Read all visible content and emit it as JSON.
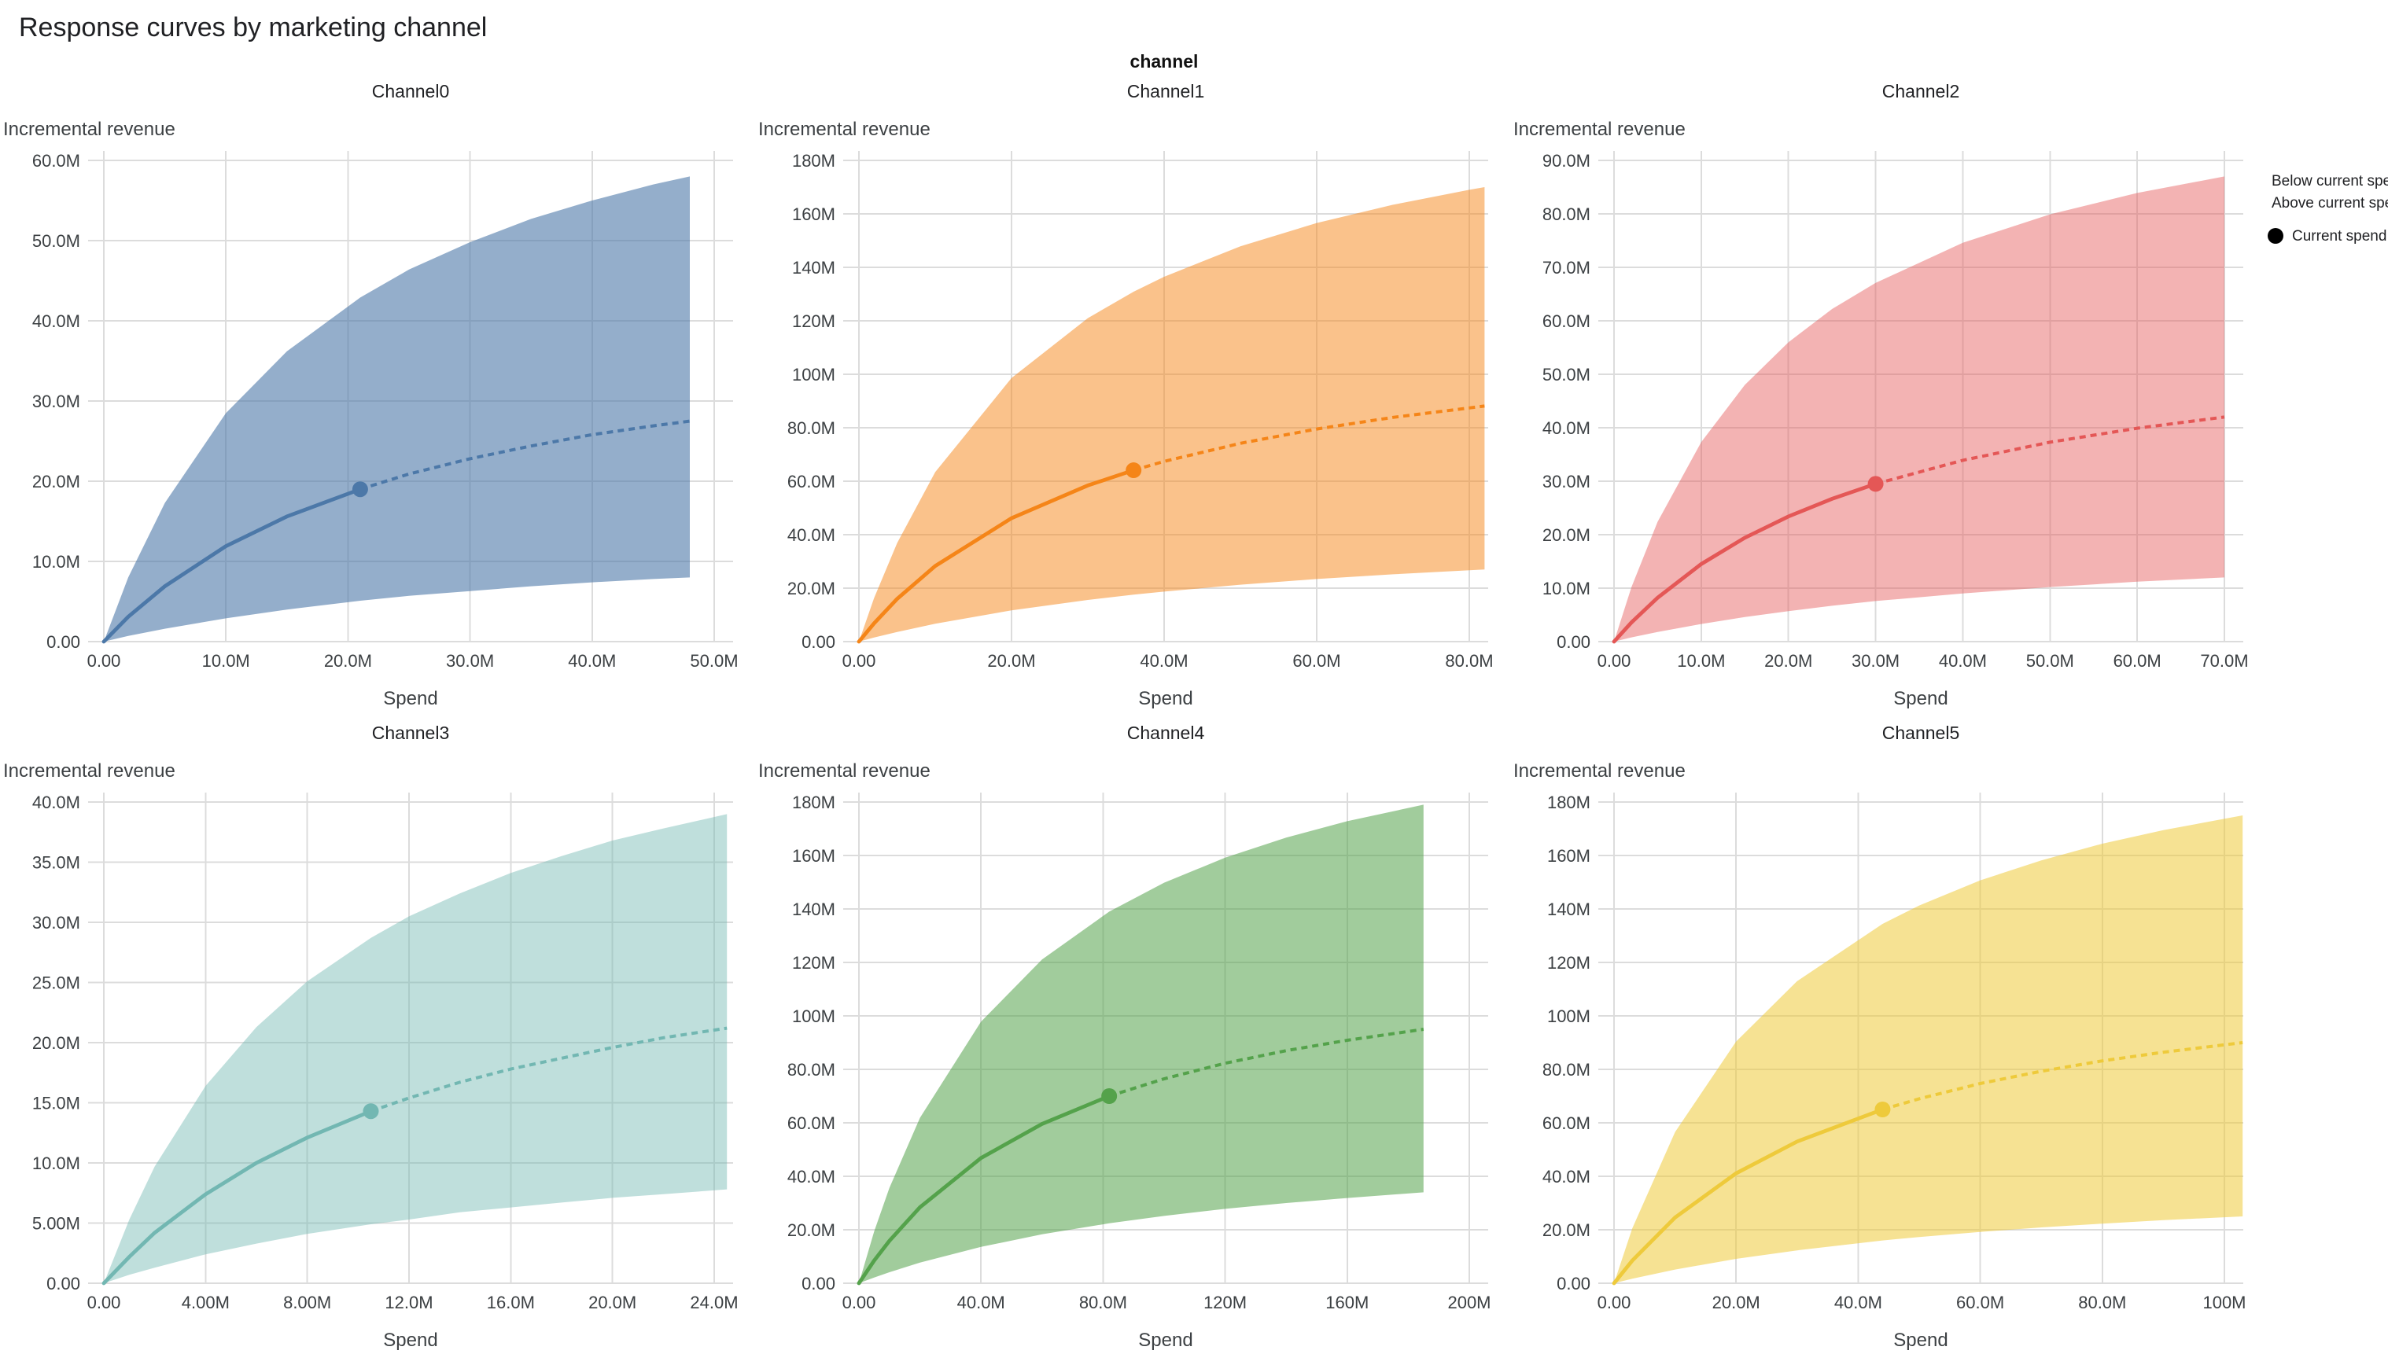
{
  "page_title": "Response curves by marketing channel",
  "figure_title": "channel",
  "legend": {
    "below_label": "Below current spend",
    "above_label": "Above current spend",
    "current_label": "Current spend"
  },
  "axis": {
    "x_label": "Spend",
    "y_label": "Incremental revenue"
  },
  "chart_data": [
    {
      "type": "area",
      "title": "Channel0",
      "xlabel": "Spend",
      "ylabel": "Incremental revenue",
      "color": "#4c78a8",
      "band_opacity": 0.6,
      "unit": "M",
      "xlim": [
        0,
        50
      ],
      "ylim": [
        0,
        60
      ],
      "x_ticks": [
        {
          "v": 0,
          "label": "0.00"
        },
        {
          "v": 10,
          "label": "10.0M"
        },
        {
          "v": 20,
          "label": "20.0M"
        },
        {
          "v": 30,
          "label": "30.0M"
        },
        {
          "v": 40,
          "label": "40.0M"
        },
        {
          "v": 50,
          "label": "50.0M"
        }
      ],
      "y_ticks": [
        {
          "v": 0,
          "label": "0.00"
        },
        {
          "v": 10,
          "label": "10.0M"
        },
        {
          "v": 20,
          "label": "20.0M"
        },
        {
          "v": 30,
          "label": "30.0M"
        },
        {
          "v": 40,
          "label": "40.0M"
        },
        {
          "v": 50,
          "label": "50.0M"
        },
        {
          "v": 60,
          "label": "60.0M"
        }
      ],
      "current_spend": {
        "x": 21,
        "y": 19.0
      },
      "x": [
        0,
        2,
        5,
        10,
        15,
        21,
        25,
        30,
        35,
        40,
        45,
        48
      ],
      "mean": [
        0,
        3.1,
        6.9,
        11.9,
        15.6,
        19.0,
        20.9,
        22.8,
        24.4,
        25.8,
        26.9,
        27.5
      ],
      "upper": [
        0,
        8.0,
        17.3,
        28.5,
        36.2,
        42.9,
        46.4,
        49.8,
        52.7,
        55.0,
        57.0,
        58.0
      ],
      "lower": [
        0,
        0.7,
        1.6,
        2.9,
        4.0,
        5.1,
        5.7,
        6.3,
        6.9,
        7.4,
        7.8,
        8.0
      ]
    },
    {
      "type": "area",
      "title": "Channel1",
      "xlabel": "Spend",
      "ylabel": "Incremental revenue",
      "color": "#f58518",
      "band_opacity": 0.5,
      "unit": "M",
      "xlim": [
        0,
        80
      ],
      "ylim": [
        0,
        180
      ],
      "x_ticks": [
        {
          "v": 0,
          "label": "0.00"
        },
        {
          "v": 20,
          "label": "20.0M"
        },
        {
          "v": 40,
          "label": "40.0M"
        },
        {
          "v": 60,
          "label": "60.0M"
        },
        {
          "v": 80,
          "label": "80.0M"
        }
      ],
      "y_ticks": [
        {
          "v": 0,
          "label": "0.00"
        },
        {
          "v": 20,
          "label": "20.0M"
        },
        {
          "v": 40,
          "label": "40.0M"
        },
        {
          "v": 60,
          "label": "60.0M"
        },
        {
          "v": 80,
          "label": "80.0M"
        },
        {
          "v": 100,
          "label": "100M"
        },
        {
          "v": 120,
          "label": "120M"
        },
        {
          "v": 140,
          "label": "140M"
        },
        {
          "v": 160,
          "label": "160M"
        },
        {
          "v": 180,
          "label": "180M"
        }
      ],
      "current_spend": {
        "x": 36,
        "y": 64.1
      },
      "x": [
        0,
        2,
        5,
        10,
        20,
        30,
        36,
        40,
        50,
        60,
        70,
        80,
        82
      ],
      "mean": [
        0,
        6.9,
        16.0,
        28.3,
        46.2,
        58.4,
        64.1,
        67.4,
        74.2,
        79.5,
        83.9,
        87.4,
        88.1
      ],
      "upper": [
        0,
        16.4,
        36.9,
        63.4,
        98.6,
        121.0,
        130.9,
        136.5,
        147.9,
        156.6,
        163.4,
        169.0,
        170.0
      ],
      "lower": [
        0,
        1.5,
        3.6,
        6.7,
        11.7,
        15.6,
        17.6,
        18.7,
        21.3,
        23.4,
        25.2,
        26.7,
        27.0
      ]
    },
    {
      "type": "area",
      "title": "Channel2",
      "xlabel": "Spend",
      "ylabel": "Incremental revenue",
      "color": "#e45756",
      "band_opacity": 0.45,
      "unit": "M",
      "xlim": [
        0,
        70
      ],
      "ylim": [
        0,
        90
      ],
      "x_ticks": [
        {
          "v": 0,
          "label": "0.00"
        },
        {
          "v": 10,
          "label": "10.0M"
        },
        {
          "v": 20,
          "label": "20.0M"
        },
        {
          "v": 30,
          "label": "30.0M"
        },
        {
          "v": 40,
          "label": "40.0M"
        },
        {
          "v": 50,
          "label": "50.0M"
        },
        {
          "v": 60,
          "label": "60.0M"
        },
        {
          "v": 70,
          "label": "70.0M"
        }
      ],
      "y_ticks": [
        {
          "v": 0,
          "label": "0.00"
        },
        {
          "v": 10,
          "label": "10.0M"
        },
        {
          "v": 20,
          "label": "20.0M"
        },
        {
          "v": 30,
          "label": "30.0M"
        },
        {
          "v": 40,
          "label": "40.0M"
        },
        {
          "v": 50,
          "label": "50.0M"
        },
        {
          "v": 60,
          "label": "60.0M"
        },
        {
          "v": 70,
          "label": "70.0M"
        },
        {
          "v": 80,
          "label": "80.0M"
        },
        {
          "v": 90,
          "label": "90.0M"
        }
      ],
      "current_spend": {
        "x": 30,
        "y": 29.5
      },
      "x": [
        0,
        2,
        5,
        10,
        15,
        20,
        25,
        30,
        40,
        50,
        60,
        70
      ],
      "mean": [
        0,
        3.6,
        8.2,
        14.5,
        19.4,
        23.4,
        26.7,
        29.5,
        33.9,
        37.3,
        39.9,
        42.0
      ],
      "upper": [
        0,
        10.2,
        22.4,
        37.3,
        48.0,
        56.0,
        62.2,
        67.1,
        74.6,
        79.9,
        83.9,
        87.0
      ],
      "lower": [
        0,
        0.8,
        1.8,
        3.3,
        4.6,
        5.7,
        6.7,
        7.6,
        9.0,
        10.2,
        11.2,
        12.0
      ]
    },
    {
      "type": "area",
      "title": "Channel3",
      "xlabel": "Spend",
      "ylabel": "Incremental revenue",
      "color": "#72b7b2",
      "band_opacity": 0.45,
      "unit": "M",
      "xlim": [
        0,
        24
      ],
      "ylim": [
        0,
        40
      ],
      "x_ticks": [
        {
          "v": 0,
          "label": "0.00"
        },
        {
          "v": 4,
          "label": "4.00M"
        },
        {
          "v": 8,
          "label": "8.00M"
        },
        {
          "v": 12,
          "label": "12.0M"
        },
        {
          "v": 16,
          "label": "16.0M"
        },
        {
          "v": 20,
          "label": "20.0M"
        },
        {
          "v": 24,
          "label": "24.0M"
        }
      ],
      "y_ticks": [
        {
          "v": 0,
          "label": "0.00"
        },
        {
          "v": 5,
          "label": "5.00M"
        },
        {
          "v": 10,
          "label": "10.0M"
        },
        {
          "v": 15,
          "label": "15.0M"
        },
        {
          "v": 20,
          "label": "20.0M"
        },
        {
          "v": 25,
          "label": "25.0M"
        },
        {
          "v": 30,
          "label": "30.0M"
        },
        {
          "v": 35,
          "label": "35.0M"
        },
        {
          "v": 40,
          "label": "40.0M"
        }
      ],
      "current_spend": {
        "x": 10.5,
        "y": 14.3
      },
      "x": [
        0,
        1,
        2,
        4,
        6,
        8,
        10.5,
        12,
        14,
        16,
        18,
        20,
        22,
        24.5
      ],
      "mean": [
        0,
        2.2,
        4.2,
        7.4,
        10.0,
        12.1,
        14.3,
        15.4,
        16.7,
        17.8,
        18.7,
        19.6,
        20.4,
        21.2
      ],
      "upper": [
        0,
        5.3,
        9.7,
        16.4,
        21.3,
        25.1,
        28.7,
        30.5,
        32.4,
        34.1,
        35.5,
        36.8,
        37.8,
        39.0
      ],
      "lower": [
        0,
        0.7,
        1.3,
        2.4,
        3.3,
        4.1,
        4.9,
        5.3,
        5.9,
        6.3,
        6.7,
        7.1,
        7.4,
        7.8
      ]
    },
    {
      "type": "area",
      "title": "Channel4",
      "xlabel": "Spend",
      "ylabel": "Incremental revenue",
      "color": "#54a24b",
      "band_opacity": 0.55,
      "unit": "M",
      "xlim": [
        0,
        200
      ],
      "ylim": [
        0,
        180
      ],
      "x_ticks": [
        {
          "v": 0,
          "label": "0.00"
        },
        {
          "v": 40,
          "label": "40.0M"
        },
        {
          "v": 80,
          "label": "80.0M"
        },
        {
          "v": 120,
          "label": "120M"
        },
        {
          "v": 160,
          "label": "160M"
        },
        {
          "v": 200,
          "label": "200M"
        }
      ],
      "y_ticks": [
        {
          "v": 0,
          "label": "0.00"
        },
        {
          "v": 20,
          "label": "20.0M"
        },
        {
          "v": 40,
          "label": "40.0M"
        },
        {
          "v": 60,
          "label": "60.0M"
        },
        {
          "v": 80,
          "label": "80.0M"
        },
        {
          "v": 100,
          "label": "100M"
        },
        {
          "v": 120,
          "label": "120M"
        },
        {
          "v": 140,
          "label": "140M"
        },
        {
          "v": 160,
          "label": "160M"
        },
        {
          "v": 180,
          "label": "180M"
        }
      ],
      "current_spend": {
        "x": 82,
        "y": 70.0
      },
      "x": [
        0,
        5,
        10,
        20,
        40,
        60,
        82,
        100,
        120,
        140,
        160,
        185
      ],
      "mean": [
        0,
        8.5,
        15.9,
        28.4,
        46.8,
        59.6,
        70.0,
        76.5,
        82.3,
        87.0,
        90.9,
        95.0
      ],
      "upper": [
        0,
        19.4,
        35.7,
        61.9,
        97.8,
        121.1,
        139.0,
        149.8,
        159.2,
        166.7,
        172.8,
        179.0
      ],
      "lower": [
        0,
        2.1,
        4.1,
        7.7,
        13.6,
        18.3,
        22.4,
        25.2,
        27.8,
        30.0,
        31.9,
        34.0
      ]
    },
    {
      "type": "area",
      "title": "Channel5",
      "xlabel": "Spend",
      "ylabel": "Incremental revenue",
      "color": "#eeca3b",
      "band_opacity": 0.55,
      "unit": "M",
      "xlim": [
        0,
        100
      ],
      "ylim": [
        0,
        180
      ],
      "x_ticks": [
        {
          "v": 0,
          "label": "0.00"
        },
        {
          "v": 20,
          "label": "20.0M"
        },
        {
          "v": 40,
          "label": "40.0M"
        },
        {
          "v": 60,
          "label": "60.0M"
        },
        {
          "v": 80,
          "label": "80.0M"
        },
        {
          "v": 100,
          "label": "100M"
        }
      ],
      "y_ticks": [
        {
          "v": 0,
          "label": "0.00"
        },
        {
          "v": 20,
          "label": "20.0M"
        },
        {
          "v": 40,
          "label": "40.0M"
        },
        {
          "v": 60,
          "label": "60.0M"
        },
        {
          "v": 80,
          "label": "80.0M"
        },
        {
          "v": 100,
          "label": "100M"
        },
        {
          "v": 120,
          "label": "120M"
        },
        {
          "v": 140,
          "label": "140M"
        },
        {
          "v": 160,
          "label": "160M"
        },
        {
          "v": 180,
          "label": "180M"
        }
      ],
      "current_spend": {
        "x": 44,
        "y": 65.0
      },
      "x": [
        0,
        3,
        10,
        20,
        30,
        44,
        50,
        60,
        70,
        80,
        90,
        103
      ],
      "mean": [
        0,
        8.5,
        24.6,
        41.1,
        53.0,
        65.0,
        69.0,
        74.7,
        79.3,
        83.2,
        86.4,
        90.0
      ],
      "upper": [
        0,
        20.5,
        56.5,
        90.4,
        113.0,
        134.4,
        141.3,
        150.7,
        158.2,
        164.4,
        169.5,
        175.0
      ],
      "lower": [
        0,
        1.7,
        5.1,
        9.1,
        12.3,
        16.0,
        17.3,
        19.2,
        20.9,
        22.3,
        23.6,
        25.0
      ]
    }
  ]
}
